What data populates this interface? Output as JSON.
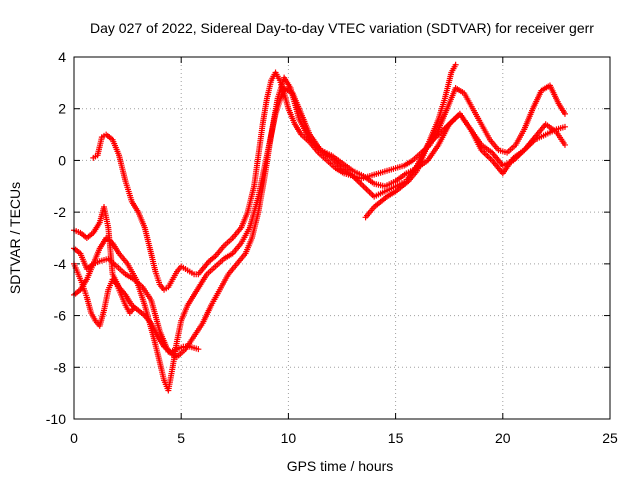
{
  "chart_data": {
    "type": "scatter",
    "title": "Day 027 of 2022, Sidereal Day-to-day VTEC variation (SDTVAR) for receiver gerr",
    "xlabel": "GPS time / hours",
    "ylabel": "SDTVAR / TECUs",
    "xlim": [
      0,
      25
    ],
    "ylim": [
      -10,
      4
    ],
    "xticks": [
      0,
      5,
      10,
      15,
      20,
      25
    ],
    "yticks": [
      -10,
      -8,
      -6,
      -4,
      -2,
      0,
      2,
      4
    ],
    "grid": true,
    "legend": "none",
    "marker": "plus",
    "color": "#ff0000",
    "series": [
      {
        "x": [
          0.9,
          1.1,
          1.3,
          1.5,
          1.8,
          2.1,
          2.4,
          2.7,
          3.0,
          3.3,
          3.6,
          3.8,
          4.0,
          4.2,
          4.4,
          4.6,
          4.8,
          5.0,
          5.2,
          5.4,
          5.6,
          5.8,
          6.0,
          6.3,
          6.6,
          7.0,
          7.4,
          7.8,
          8.1,
          8.4,
          8.6,
          8.8,
          9.0,
          9.2,
          9.4,
          9.6,
          9.8,
          10.0,
          10.3,
          10.6,
          11.0,
          11.4,
          11.8,
          12.2,
          12.6,
          13.0,
          13.4,
          13.8,
          14.2,
          14.6,
          15.0,
          15.4,
          15.8,
          16.2,
          16.6,
          17.0,
          17.4,
          17.8,
          18.2,
          18.6,
          19.0,
          19.4,
          19.8,
          20.2,
          20.6,
          21.0,
          21.4,
          21.8,
          22.2,
          22.6,
          22.9
        ],
        "y": [
          0.1,
          0.2,
          0.9,
          1.0,
          0.8,
          0.2,
          -0.8,
          -1.6,
          -2.0,
          -2.6,
          -3.6,
          -4.3,
          -4.8,
          -5.0,
          -4.9,
          -4.6,
          -4.3,
          -4.1,
          -4.2,
          -4.3,
          -4.4,
          -4.4,
          -4.2,
          -3.9,
          -3.7,
          -3.3,
          -3.0,
          -2.6,
          -2.0,
          -1.0,
          0.2,
          1.4,
          2.4,
          3.1,
          3.4,
          3.1,
          2.6,
          2.0,
          1.4,
          1.0,
          0.7,
          0.3,
          0.0,
          -0.3,
          -0.5,
          -0.6,
          -0.7,
          -0.6,
          -0.5,
          -0.4,
          -0.3,
          -0.2,
          0.0,
          0.3,
          0.6,
          1.2,
          2.0,
          2.8,
          2.6,
          2.0,
          1.4,
          0.8,
          0.4,
          0.3,
          0.6,
          1.2,
          2.0,
          2.7,
          2.9,
          2.2,
          1.8
        ]
      },
      {
        "x": [
          0.0,
          0.3,
          0.6,
          0.9,
          1.2,
          1.6,
          2.0,
          2.4,
          2.8,
          3.2,
          3.6,
          4.0,
          4.4,
          4.8,
          5.2,
          5.6,
          6.0,
          6.4,
          6.8,
          7.2,
          7.6,
          8.0,
          8.3,
          8.6,
          8.9,
          9.2,
          9.5,
          9.8,
          10.1,
          10.5,
          11.0,
          11.5,
          12.0,
          12.5,
          13.0,
          13.5,
          14.0,
          14.5,
          15.0,
          15.5,
          16.0,
          16.5,
          17.0,
          17.5,
          18.0,
          18.5,
          19.0,
          19.5,
          20.0,
          20.5,
          21.0,
          21.5,
          22.0,
          22.5,
          22.9
        ],
        "y": [
          -3.4,
          -3.6,
          -4.2,
          -4.0,
          -3.9,
          -3.8,
          -4.1,
          -4.4,
          -4.6,
          -4.9,
          -5.4,
          -6.6,
          -7.4,
          -7.6,
          -7.3,
          -6.8,
          -6.3,
          -5.6,
          -5.0,
          -4.4,
          -4.0,
          -3.6,
          -3.0,
          -2.0,
          -0.6,
          1.0,
          2.4,
          3.2,
          2.8,
          1.6,
          0.8,
          0.4,
          0.2,
          -0.1,
          -0.4,
          -0.6,
          -0.9,
          -1.0,
          -0.8,
          -0.5,
          -0.3,
          0.0,
          0.6,
          1.4,
          1.8,
          1.2,
          0.4,
          0.0,
          -0.5,
          0.1,
          0.4,
          0.8,
          1.0,
          1.2,
          1.3
        ]
      },
      {
        "x": [
          0.0,
          0.3,
          0.6,
          0.9,
          1.2,
          1.5,
          1.8,
          2.1,
          2.5,
          2.9,
          3.3,
          3.7,
          4.0,
          4.2,
          4.4,
          4.6,
          4.8,
          5.0,
          5.3,
          5.6,
          5.9,
          6.2,
          6.6,
          7.0,
          7.4,
          7.8,
          8.2,
          8.6,
          9.0,
          9.4,
          9.8,
          10.2,
          10.6,
          11.0,
          11.5,
          12.0,
          12.5,
          13.0,
          13.5,
          14.0,
          14.5,
          15.0,
          15.5,
          16.0,
          16.5,
          17.0,
          17.5,
          18.0,
          18.5,
          19.0,
          19.5,
          20.0,
          20.5,
          21.0,
          21.5,
          22.0,
          22.5,
          22.9
        ],
        "y": [
          -5.2,
          -5.0,
          -4.6,
          -4.0,
          -3.4,
          -3.0,
          -3.2,
          -3.6,
          -4.0,
          -4.6,
          -5.6,
          -6.8,
          -7.8,
          -8.5,
          -8.9,
          -8.0,
          -7.0,
          -6.2,
          -5.6,
          -5.2,
          -4.8,
          -4.4,
          -4.1,
          -3.8,
          -3.6,
          -3.2,
          -2.6,
          -1.4,
          0.2,
          1.8,
          2.8,
          2.6,
          1.8,
          1.0,
          0.4,
          0.1,
          -0.3,
          -0.6,
          -1.0,
          -1.4,
          -1.2,
          -1.0,
          -0.8,
          -0.2,
          0.6,
          1.0,
          1.4,
          1.8,
          1.2,
          0.6,
          0.3,
          -0.2,
          0.0,
          0.4,
          0.9,
          1.4,
          1.1,
          0.6
        ]
      },
      {
        "x": [
          0.0,
          0.3,
          0.6,
          0.9,
          1.2,
          1.4,
          1.6,
          1.8,
          2.1,
          2.4,
          2.7,
          3.0,
          3.3,
          3.6,
          3.9,
          4.2,
          4.5,
          4.8,
          5.1,
          5.4,
          5.8
        ],
        "y": [
          -2.7,
          -2.8,
          -3.0,
          -2.8,
          -2.4,
          -1.8,
          -2.6,
          -4.4,
          -4.9,
          -5.2,
          -5.6,
          -5.8,
          -6.0,
          -6.3,
          -6.8,
          -7.2,
          -7.4,
          -7.3,
          -7.2,
          -7.2,
          -7.3
        ]
      },
      {
        "x": [
          0.0,
          0.2,
          0.4,
          0.6,
          0.8,
          1.0,
          1.2,
          1.4,
          1.6,
          1.8,
          2.0,
          2.2,
          2.4,
          2.6,
          2.8
        ],
        "y": [
          -4.0,
          -4.4,
          -4.8,
          -5.3,
          -5.9,
          -6.2,
          -6.4,
          -5.8,
          -5.0,
          -4.6,
          -4.8,
          -5.2,
          -5.6,
          -5.9,
          -5.7
        ]
      },
      {
        "x": [
          13.6,
          13.8,
          14.0,
          14.3,
          14.6,
          15.0,
          15.3,
          15.6,
          16.0,
          16.3,
          16.6,
          17.0,
          17.3,
          17.6,
          17.8
        ],
        "y": [
          -2.2,
          -2.0,
          -1.8,
          -1.6,
          -1.4,
          -1.2,
          -1.0,
          -0.8,
          -0.4,
          0.2,
          0.8,
          1.6,
          2.4,
          3.4,
          3.7
        ]
      }
    ]
  }
}
